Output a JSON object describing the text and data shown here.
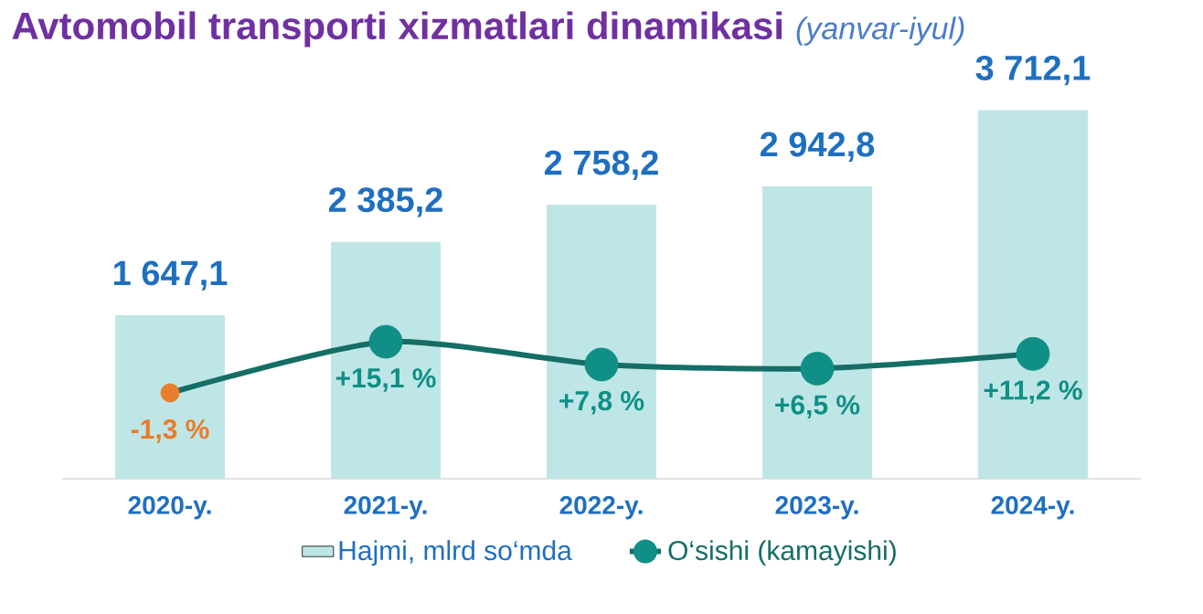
{
  "chart_data": {
    "type": "bar",
    "title": "Avtomobil transporti xizmatlari dinamikasi",
    "subtitle": "(yanvar-iyul)",
    "categories": [
      "2020-y.",
      "2021-y.",
      "2022-y.",
      "2023-y.",
      "2024-y."
    ],
    "series": [
      {
        "name": "Hajmi, mlrd so‘mda",
        "color": "#bfe6e6",
        "values": [
          1647.1,
          2385.2,
          2758.2,
          2942.8,
          3712.1
        ],
        "value_labels": [
          "1 647,1",
          "2 385,2",
          "2 758,2",
          "2 942,8",
          "3 712,1"
        ]
      },
      {
        "name": "O‘sishi (kamayishi)",
        "type": "line",
        "axis": "y2",
        "color": "#156e66",
        "colors": [
          "#e87d2b",
          "#0f8f86",
          "#0f8f86",
          "#0f8f86",
          "#0f8f86"
        ],
        "values": [
          -1.3,
          15.1,
          7.8,
          6.5,
          11.2
        ],
        "value_labels": [
          "-1,3 %",
          "+15,1 %",
          "+7,8 %",
          "+6,5 %",
          "+11,2 %"
        ]
      }
    ],
    "tick_labels": "x",
    "grid": false,
    "legend": "bottom",
    "marker": "circle"
  }
}
